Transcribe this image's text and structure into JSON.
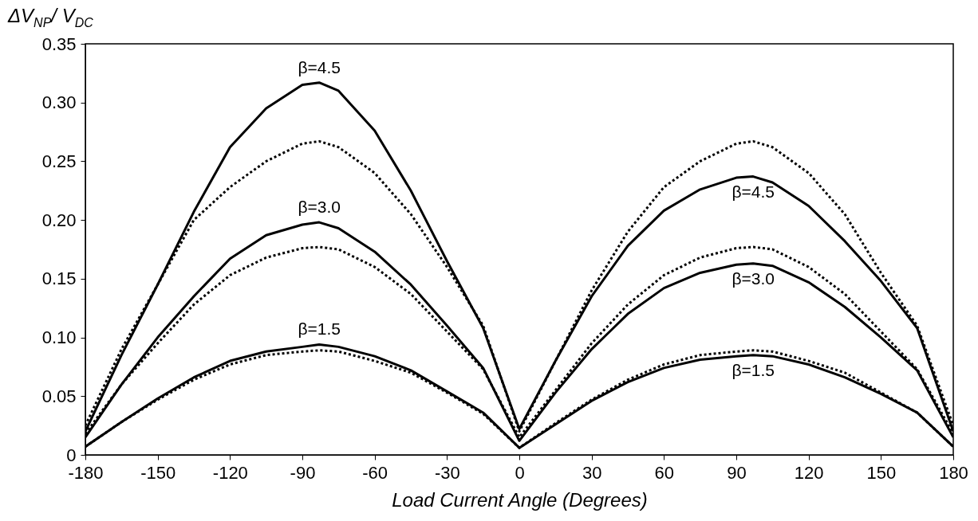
{
  "chart_data": {
    "type": "line",
    "ylabel": "ΔV$_{NP}$/ V$_{DC}$",
    "xlabel": "Load Current Angle (Degrees)",
    "x": [
      -180,
      -165,
      -150,
      -135,
      -120,
      -105,
      -90,
      -83,
      -75,
      -60,
      -45,
      -30,
      -15,
      0,
      15,
      30,
      45,
      60,
      75,
      90,
      97,
      105,
      120,
      135,
      150,
      165,
      180
    ],
    "series": [
      {
        "name": "β=4.5",
        "color": "#000000",
        "line_style": "solid",
        "values": [
          0.02,
          0.085,
          0.145,
          0.207,
          0.262,
          0.295,
          0.315,
          0.317,
          0.31,
          0.276,
          0.225,
          0.165,
          0.108,
          0.022,
          0.08,
          0.135,
          0.178,
          0.208,
          0.226,
          0.236,
          0.237,
          0.232,
          0.212,
          0.182,
          0.148,
          0.108,
          0.02
        ]
      },
      {
        "color": "#000000",
        "line_style": "dotted",
        "values": [
          0.025,
          0.09,
          0.145,
          0.2,
          0.228,
          0.25,
          0.265,
          0.267,
          0.262,
          0.24,
          0.205,
          0.16,
          0.11,
          0.02,
          0.08,
          0.14,
          0.19,
          0.228,
          0.25,
          0.265,
          0.267,
          0.262,
          0.24,
          0.205,
          0.155,
          0.11,
          0.025
        ]
      },
      {
        "name": "β=3.0",
        "color": "#000000",
        "line_style": "solid",
        "values": [
          0.015,
          0.06,
          0.1,
          0.135,
          0.167,
          0.187,
          0.196,
          0.198,
          0.193,
          0.173,
          0.145,
          0.11,
          0.074,
          0.012,
          0.053,
          0.09,
          0.12,
          0.142,
          0.155,
          0.162,
          0.163,
          0.161,
          0.147,
          0.126,
          0.1,
          0.072,
          0.015
        ]
      },
      {
        "color": "#000000",
        "line_style": "dotted",
        "values": [
          0.018,
          0.06,
          0.095,
          0.128,
          0.153,
          0.168,
          0.176,
          0.177,
          0.175,
          0.16,
          0.137,
          0.105,
          0.073,
          0.015,
          0.055,
          0.095,
          0.128,
          0.153,
          0.168,
          0.176,
          0.177,
          0.175,
          0.16,
          0.137,
          0.105,
          0.073,
          0.018
        ]
      },
      {
        "name": "β=1.5",
        "color": "#000000",
        "line_style": "solid",
        "values": [
          0.007,
          0.028,
          0.048,
          0.066,
          0.08,
          0.088,
          0.092,
          0.094,
          0.092,
          0.084,
          0.072,
          0.054,
          0.036,
          0.006,
          0.026,
          0.046,
          0.062,
          0.074,
          0.081,
          0.084,
          0.085,
          0.084,
          0.077,
          0.066,
          0.052,
          0.036,
          0.007
        ]
      },
      {
        "color": "#000000",
        "line_style": "dotted",
        "values": [
          0.007,
          0.028,
          0.047,
          0.064,
          0.077,
          0.085,
          0.088,
          0.089,
          0.088,
          0.08,
          0.07,
          0.053,
          0.035,
          0.006,
          0.027,
          0.047,
          0.064,
          0.077,
          0.085,
          0.088,
          0.089,
          0.088,
          0.08,
          0.07,
          0.053,
          0.036,
          0.007
        ]
      }
    ],
    "xlim": [
      -180,
      180
    ],
    "xticks": [
      -180,
      -150,
      -120,
      -90,
      -60,
      -30,
      0,
      30,
      60,
      90,
      120,
      150,
      180
    ],
    "ylim": [
      0,
      0.35
    ],
    "yticks": [
      0,
      0.05,
      {
        "value": 0.1,
        "label": "0.10"
      },
      0.15,
      {
        "value": 0.2,
        "label": "0.20"
      },
      0.25,
      {
        "value": 0.3,
        "label": "0.30"
      },
      0.35
    ],
    "grid": false
  }
}
